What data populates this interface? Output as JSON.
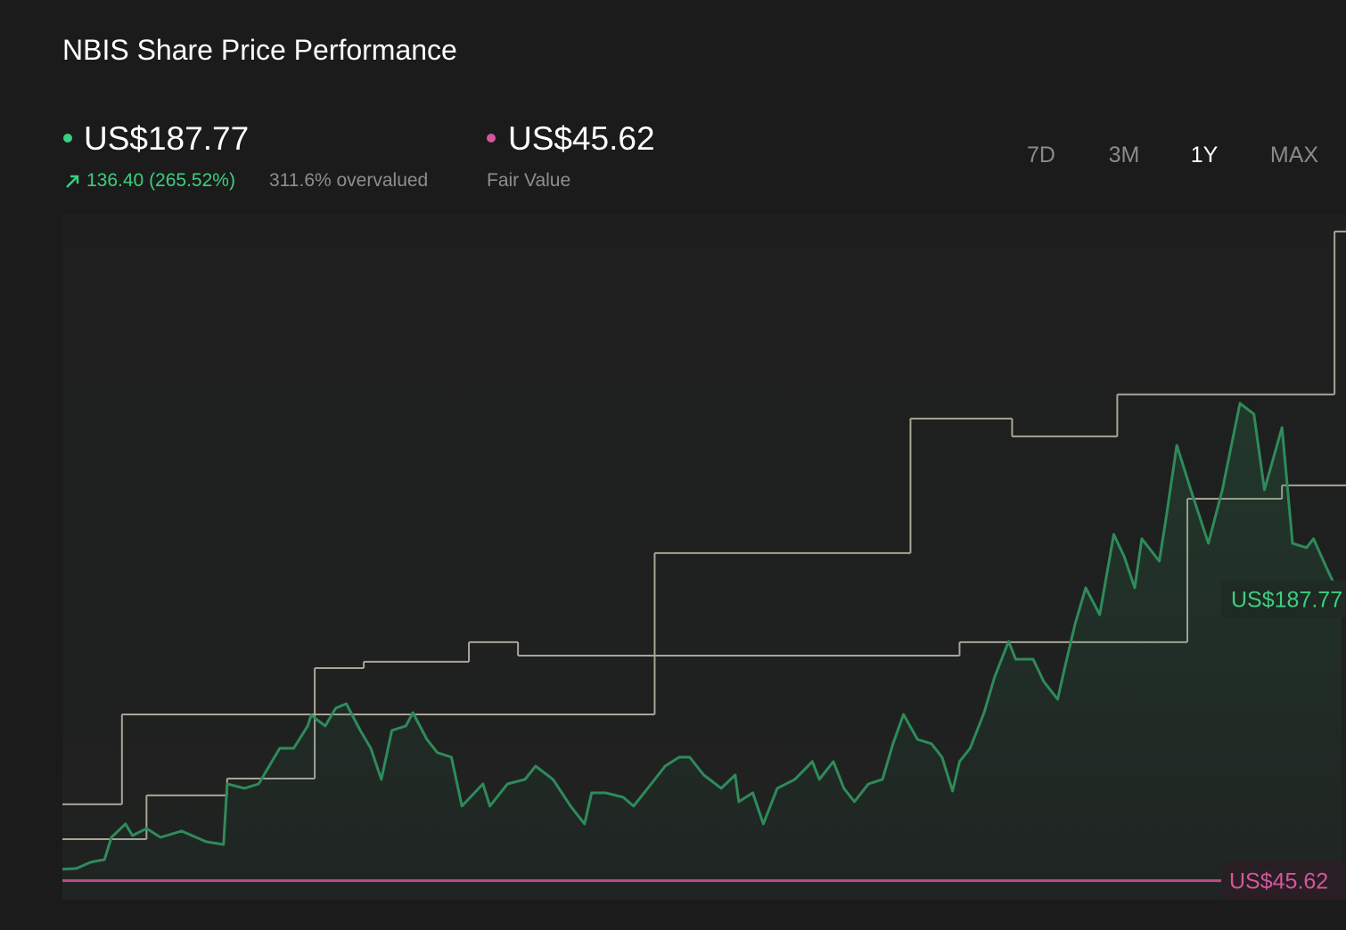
{
  "chart_data": {
    "type": "line",
    "title": "NBIS Share Price Performance",
    "xlim": [
      0,
      365
    ],
    "ylim": [
      36,
      382
    ],
    "price": {
      "value": 187.77,
      "value_label": "US$187.77",
      "change": "136.40 (265.52%)",
      "valuation": "311.6% overvalued",
      "color": "#2e8b5a",
      "label_color": "#3ccf7f"
    },
    "fair_value": {
      "name": "Fair Value",
      "value": 45.62,
      "value_label": "US$45.62",
      "color": "#c2498a",
      "label_color": "#d2579a"
    },
    "series": [
      {
        "color": "#2e8b5a",
        "x": [
          0,
          4,
          8,
          12,
          14,
          18,
          20,
          24,
          28,
          34,
          41,
          46,
          47,
          52,
          56,
          59,
          62,
          66,
          70,
          71,
          75,
          78,
          81,
          85,
          88,
          91,
          94,
          98,
          100,
          104,
          107,
          111,
          114,
          120,
          122,
          127,
          132,
          135,
          140,
          145,
          149,
          151,
          155,
          160,
          163,
          168,
          172,
          176,
          179,
          183,
          188,
          192,
          193,
          197,
          200,
          204,
          209,
          214,
          216,
          220,
          223,
          226,
          230,
          234,
          237,
          240,
          244,
          248,
          251,
          254,
          256,
          259,
          263,
          266,
          270,
          272,
          277,
          280,
          284,
          286,
          289,
          292,
          296,
          300,
          303,
          306,
          308,
          313,
          315,
          318,
          322,
          327,
          331,
          336,
          340,
          343,
          348,
          351,
          355,
          357,
          361,
          365
        ],
        "values": [
          51.4,
          51.8,
          54.9,
          56.3,
          67.5,
          74.3,
          68.4,
          72,
          67.5,
          70.7,
          65.3,
          63.9,
          94.5,
          92.3,
          94.5,
          103.5,
          112.5,
          112.5,
          123.8,
          129.2,
          123.8,
          132.8,
          135,
          121.5,
          112.5,
          96.8,
          121.5,
          123.8,
          130.5,
          117,
          110.3,
          108,
          83.3,
          94.5,
          83.3,
          94.5,
          96.8,
          103.5,
          96.8,
          83.3,
          74.3,
          90,
          90,
          87.8,
          83.3,
          94.5,
          103.5,
          108,
          108,
          99,
          92.3,
          99,
          85.5,
          90,
          74.3,
          92.3,
          96.8,
          105.8,
          96.8,
          105.8,
          92.3,
          85.5,
          94.5,
          96.8,
          114.8,
          129.6,
          117,
          114.8,
          108,
          90.9,
          105.8,
          112.5,
          130.5,
          148.5,
          166.5,
          157.5,
          157.5,
          146.3,
          137.3,
          153,
          175.5,
          193.5,
          180,
          220.5,
          209.3,
          193.5,
          218.3,
          207,
          229.5,
          265.5,
          243,
          216,
          243,
          286.7,
          281.3,
          243,
          274.5,
          216,
          213.8,
          218.3,
          202.5,
          187.77
        ]
      }
    ],
    "steps": [
      {
        "color": "#a9a596",
        "x": [
          0,
          17,
          169,
          242,
          271,
          301,
          363
        ],
        "values": [
          84.2,
          129.6,
          211.1,
          279,
          270,
          291.2,
          373.5
        ]
      },
      {
        "color": "#a9a596",
        "x": [
          0,
          24,
          47,
          72,
          86,
          116,
          130,
          256,
          321,
          348
        ],
        "values": [
          66.6,
          88.7,
          97.2,
          153,
          156.2,
          166.1,
          159.3,
          166.1,
          238.5,
          245.3
        ]
      }
    ],
    "ranges": [
      "7D",
      "3M",
      "1Y",
      "MAX"
    ],
    "active_range": "1Y"
  }
}
